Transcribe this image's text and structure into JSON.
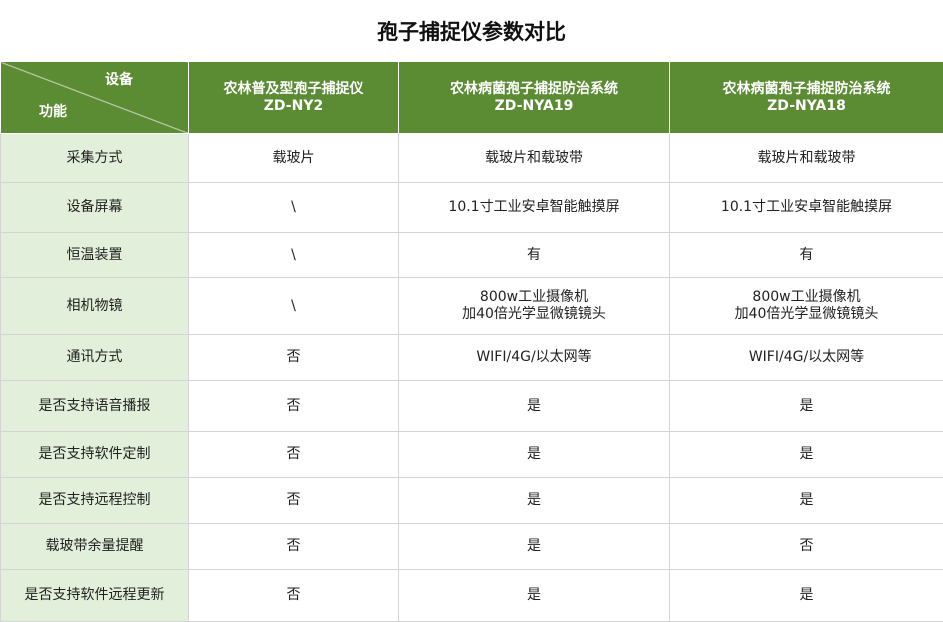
{
  "title": "孢子捕捉仪参数对比",
  "header": {
    "device_label": "设备",
    "function_label": "功能",
    "columns": [
      {
        "name": "农林普及型孢子捕捉仪",
        "model": "ZD-NY2"
      },
      {
        "name": "农林病菌孢子捕捉防治系统",
        "model": "ZD-NYA19"
      },
      {
        "name": "农林病菌孢子捕捉防治系统",
        "model": "ZD-NYA18"
      }
    ]
  },
  "rows": [
    {
      "f": "采集方式",
      "v": [
        "载玻片",
        "载玻片和载玻带",
        "载玻片和载玻带"
      ]
    },
    {
      "f": "设备屏幕",
      "v": [
        "\\",
        "10.1寸工业安卓智能触摸屏",
        "10.1寸工业安卓智能触摸屏"
      ]
    },
    {
      "f": "恒温装置",
      "v": [
        "\\",
        "有",
        "有"
      ]
    },
    {
      "f": "相机物镜",
      "v": [
        "\\",
        "800w工业摄像机\n加40倍光学显微镜镜头",
        "800w工业摄像机\n加40倍光学显微镜镜头"
      ]
    },
    {
      "f": "通讯方式",
      "v": [
        "否",
        "WIFI/4G/以太网等",
        "WIFI/4G/以太网等"
      ]
    },
    {
      "f": "是否支持语音播报",
      "v": [
        "否",
        "是",
        "是"
      ]
    },
    {
      "f": "是否支持软件定制",
      "v": [
        "否",
        "是",
        "是"
      ]
    },
    {
      "f": "是否支持远程控制",
      "v": [
        "否",
        "是",
        "是"
      ]
    },
    {
      "f": "载玻带余量提醒",
      "v": [
        "否",
        "是",
        "否"
      ]
    },
    {
      "f": "是否支持软件远程更新",
      "v": [
        "否",
        "是",
        "是"
      ]
    }
  ]
}
